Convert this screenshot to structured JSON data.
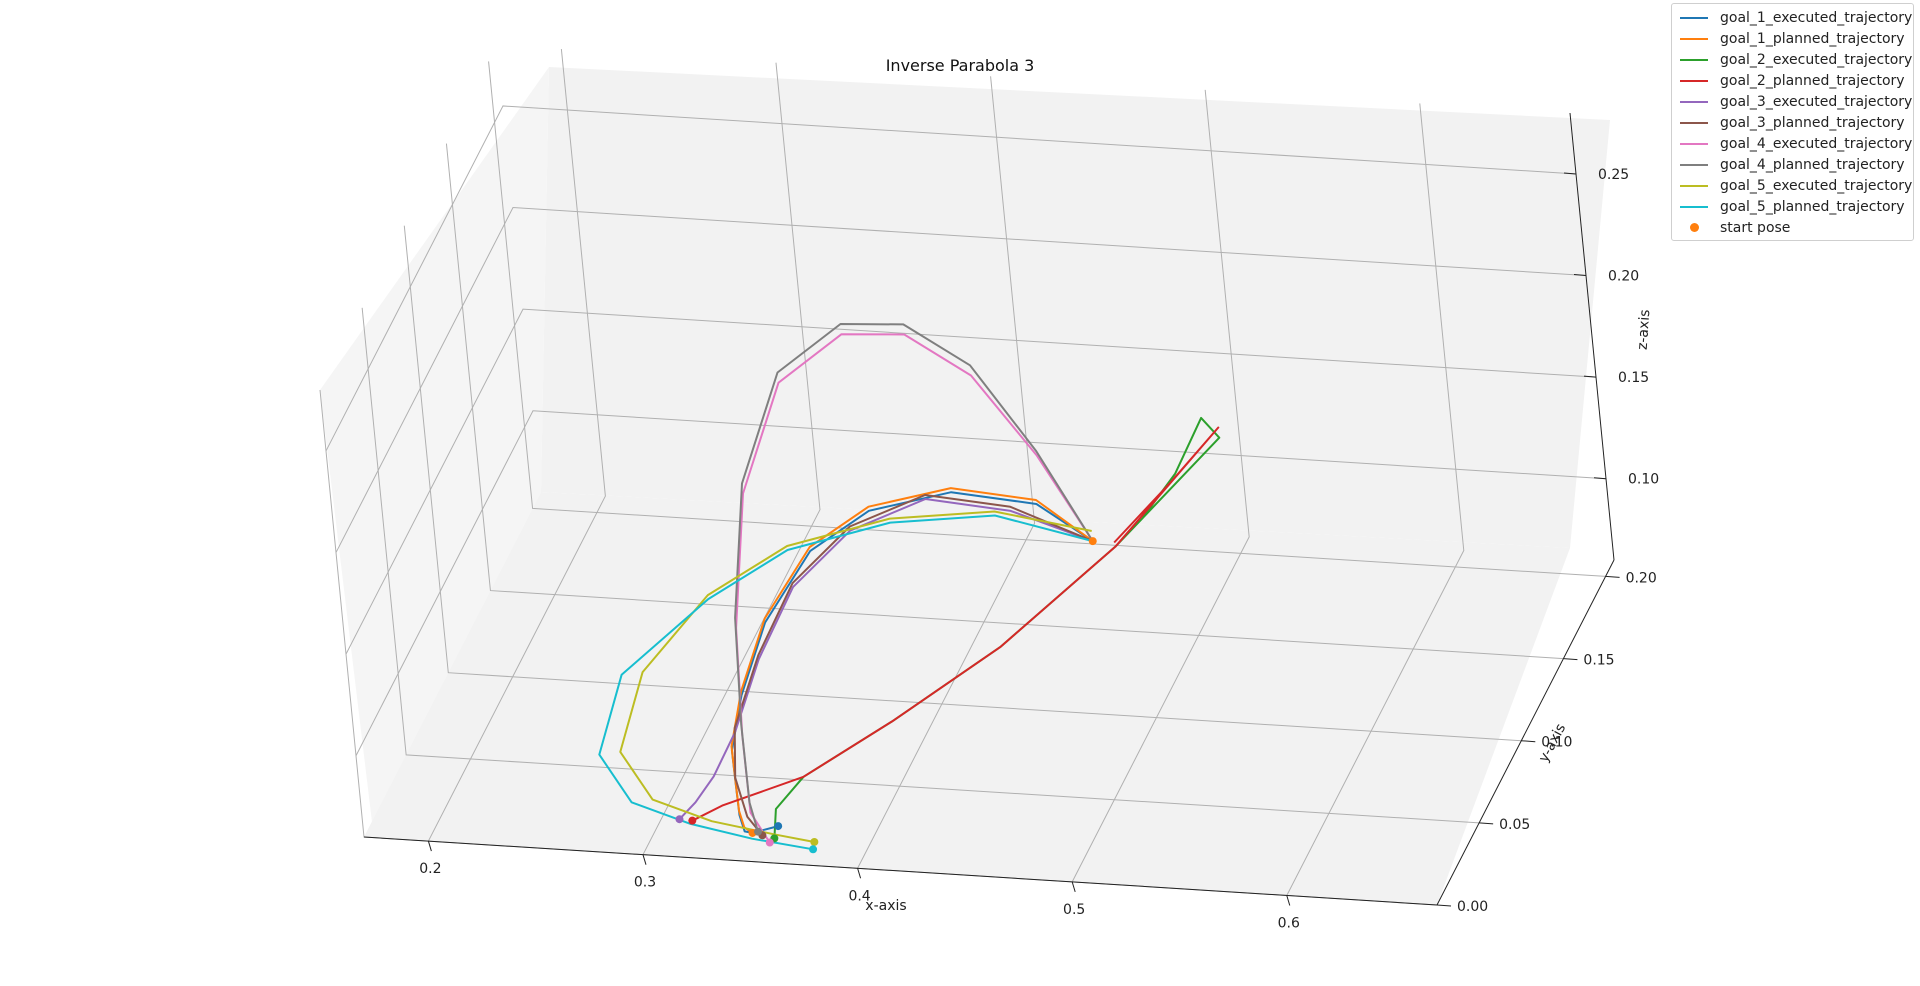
{
  "chart_data": {
    "type": "line3d",
    "title": "Inverse Parabola 3",
    "xlabel": "x-axis",
    "ylabel": "y-axis",
    "zlabel": "z-axis",
    "xticks": [
      "0.2",
      "0.3",
      "0.4",
      "0.5",
      "0.6"
    ],
    "yticks": [
      "0.00",
      "0.05",
      "0.10",
      "0.15",
      "0.20"
    ],
    "zticks": [
      "0.10",
      "0.15",
      "0.20",
      "0.25"
    ],
    "xlim": [
      0.17,
      0.67
    ],
    "ylim": [
      0.0,
      0.21
    ],
    "zlim": [
      0.06,
      0.28
    ],
    "grid": true,
    "legend": "top-right",
    "start_pose": {
      "name": "start pose",
      "color": "#ff7f0e",
      "point": [
        0.45,
        0.16,
        0.095
      ]
    },
    "series": [
      {
        "name": "goal_1_executed_trajectory",
        "color": "#1f77b4",
        "goal": 1,
        "kind": "executed",
        "points": [
          [
            0.45,
            0.16,
            0.095
          ],
          [
            0.43,
            0.15,
            0.12
          ],
          [
            0.4,
            0.13,
            0.14
          ],
          [
            0.37,
            0.11,
            0.145
          ],
          [
            0.35,
            0.09,
            0.14
          ],
          [
            0.335,
            0.07,
            0.12
          ],
          [
            0.33,
            0.05,
            0.1
          ],
          [
            0.33,
            0.035,
            0.085
          ],
          [
            0.335,
            0.025,
            0.075
          ],
          [
            0.34,
            0.015,
            0.07
          ],
          [
            0.345,
            0.008,
            0.068
          ],
          [
            0.35,
            0.005,
            0.07
          ],
          [
            0.36,
            0.01,
            0.07
          ]
        ]
      },
      {
        "name": "goal_1_planned_trajectory",
        "color": "#ff7f0e",
        "goal": 1,
        "kind": "planned",
        "points": [
          [
            0.45,
            0.16,
            0.095
          ],
          [
            0.43,
            0.15,
            0.122
          ],
          [
            0.4,
            0.13,
            0.142
          ],
          [
            0.37,
            0.11,
            0.147
          ],
          [
            0.35,
            0.09,
            0.142
          ],
          [
            0.335,
            0.07,
            0.122
          ],
          [
            0.33,
            0.05,
            0.102
          ],
          [
            0.33,
            0.035,
            0.087
          ],
          [
            0.335,
            0.025,
            0.077
          ],
          [
            0.34,
            0.015,
            0.072
          ],
          [
            0.345,
            0.008,
            0.07
          ],
          [
            0.35,
            0.005,
            0.07
          ]
        ]
      },
      {
        "name": "goal_2_executed_trajectory",
        "color": "#2ca02c",
        "goal": 2,
        "kind": "executed",
        "points": [
          [
            0.47,
            0.17,
            0.1
          ],
          [
            0.48,
            0.185,
            0.11
          ],
          [
            0.49,
            0.195,
            0.13
          ],
          [
            0.5,
            0.19,
            0.125
          ],
          [
            0.47,
            0.14,
            0.11
          ],
          [
            0.43,
            0.1,
            0.09
          ],
          [
            0.39,
            0.07,
            0.075
          ],
          [
            0.36,
            0.04,
            0.07
          ],
          [
            0.355,
            0.02,
            0.07
          ],
          [
            0.36,
            0.005,
            0.068
          ]
        ]
      },
      {
        "name": "goal_2_planned_trajectory",
        "color": "#d62728",
        "goal": 2,
        "kind": "planned",
        "points": [
          [
            0.46,
            0.16,
            0.095
          ],
          [
            0.48,
            0.18,
            0.11
          ],
          [
            0.5,
            0.19,
            0.13
          ],
          [
            0.47,
            0.14,
            0.11
          ],
          [
            0.43,
            0.1,
            0.09
          ],
          [
            0.39,
            0.07,
            0.075
          ],
          [
            0.36,
            0.04,
            0.07
          ],
          [
            0.33,
            0.02,
            0.07
          ],
          [
            0.32,
            0.01,
            0.07
          ]
        ]
      },
      {
        "name": "goal_3_executed_trajectory",
        "color": "#9467bd",
        "goal": 3,
        "kind": "executed",
        "points": [
          [
            0.45,
            0.16,
            0.095
          ],
          [
            0.42,
            0.145,
            0.12
          ],
          [
            0.39,
            0.125,
            0.14
          ],
          [
            0.365,
            0.1,
            0.143
          ],
          [
            0.345,
            0.08,
            0.13
          ],
          [
            0.335,
            0.06,
            0.11
          ],
          [
            0.33,
            0.04,
            0.09
          ],
          [
            0.325,
            0.025,
            0.08
          ],
          [
            0.32,
            0.015,
            0.075
          ],
          [
            0.315,
            0.008,
            0.072
          ]
        ]
      },
      {
        "name": "goal_3_planned_trajectory",
        "color": "#8c564b",
        "goal": 3,
        "kind": "planned",
        "points": [
          [
            0.45,
            0.16,
            0.095
          ],
          [
            0.42,
            0.145,
            0.122
          ],
          [
            0.39,
            0.125,
            0.142
          ],
          [
            0.365,
            0.1,
            0.145
          ],
          [
            0.345,
            0.08,
            0.132
          ],
          [
            0.335,
            0.06,
            0.112
          ],
          [
            0.33,
            0.04,
            0.092
          ],
          [
            0.335,
            0.025,
            0.08
          ],
          [
            0.345,
            0.012,
            0.072
          ],
          [
            0.355,
            0.004,
            0.07
          ]
        ]
      },
      {
        "name": "goal_4_executed_trajectory",
        "color": "#e377c2",
        "goal": 4,
        "kind": "executed",
        "points": [
          [
            0.45,
            0.16,
            0.095
          ],
          [
            0.43,
            0.155,
            0.14
          ],
          [
            0.41,
            0.14,
            0.19
          ],
          [
            0.39,
            0.12,
            0.225
          ],
          [
            0.37,
            0.1,
            0.24
          ],
          [
            0.35,
            0.075,
            0.235
          ],
          [
            0.34,
            0.05,
            0.2
          ],
          [
            0.34,
            0.03,
            0.15
          ],
          [
            0.345,
            0.015,
            0.11
          ],
          [
            0.35,
            0.005,
            0.08
          ],
          [
            0.36,
            0.0,
            0.07
          ]
        ]
      },
      {
        "name": "goal_4_planned_trajectory",
        "color": "#7f7f7f",
        "goal": 4,
        "kind": "planned",
        "points": [
          [
            0.45,
            0.16,
            0.095
          ],
          [
            0.43,
            0.155,
            0.142
          ],
          [
            0.41,
            0.14,
            0.195
          ],
          [
            0.39,
            0.12,
            0.23
          ],
          [
            0.37,
            0.1,
            0.245
          ],
          [
            0.35,
            0.075,
            0.24
          ],
          [
            0.34,
            0.05,
            0.205
          ],
          [
            0.34,
            0.03,
            0.155
          ],
          [
            0.345,
            0.015,
            0.115
          ],
          [
            0.35,
            0.005,
            0.085
          ],
          [
            0.355,
            0.0,
            0.075
          ]
        ]
      },
      {
        "name": "goal_5_executed_trajectory",
        "color": "#bcbd22",
        "goal": 5,
        "kind": "executed",
        "points": [
          [
            0.45,
            0.16,
            0.1
          ],
          [
            0.41,
            0.15,
            0.115
          ],
          [
            0.37,
            0.13,
            0.125
          ],
          [
            0.33,
            0.11,
            0.125
          ],
          [
            0.3,
            0.09,
            0.115
          ],
          [
            0.28,
            0.06,
            0.1
          ],
          [
            0.28,
            0.03,
            0.085
          ],
          [
            0.3,
            0.015,
            0.075
          ],
          [
            0.33,
            0.008,
            0.072
          ],
          [
            0.36,
            0.005,
            0.07
          ],
          [
            0.38,
            0.002,
            0.07
          ]
        ]
      },
      {
        "name": "goal_5_planned_trajectory",
        "color": "#17becf",
        "goal": 5,
        "kind": "planned",
        "points": [
          [
            0.45,
            0.16,
            0.095
          ],
          [
            0.41,
            0.15,
            0.113
          ],
          [
            0.37,
            0.13,
            0.123
          ],
          [
            0.33,
            0.11,
            0.123
          ],
          [
            0.3,
            0.09,
            0.113
          ],
          [
            0.27,
            0.06,
            0.098
          ],
          [
            0.27,
            0.03,
            0.083
          ],
          [
            0.29,
            0.015,
            0.073
          ],
          [
            0.32,
            0.008,
            0.07
          ],
          [
            0.35,
            0.004,
            0.068
          ],
          [
            0.38,
            0.0,
            0.068
          ]
        ]
      }
    ]
  }
}
